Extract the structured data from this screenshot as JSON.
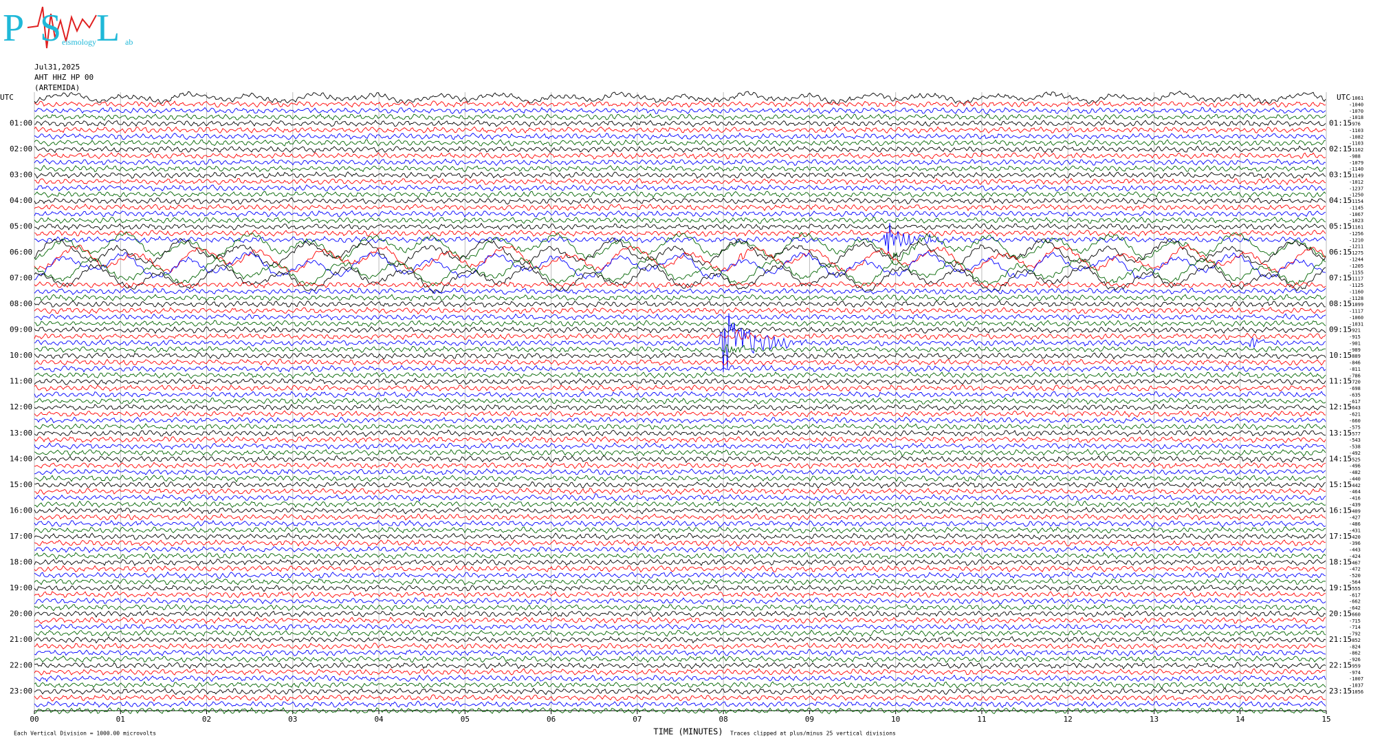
{
  "logo": {
    "initials": [
      "P",
      "S",
      "L"
    ],
    "words": [
      "eismology",
      "ab"
    ]
  },
  "chart_data": {
    "type": "helicorder",
    "date": "Jul31,2025",
    "station": "AHT HHZ HP 00",
    "site": "(ARTEMIDA)",
    "timezone_left": "UTC",
    "timezone_right": "UTC",
    "hour_labels_left": [
      "01:00",
      "02:00",
      "03:00",
      "04:00",
      "05:00",
      "06:00",
      "07:00",
      "08:00",
      "09:00",
      "10:00",
      "11:00",
      "12:00",
      "13:00",
      "14:00",
      "15:00",
      "16:00",
      "17:00",
      "18:00",
      "19:00",
      "20:00",
      "21:00",
      "22:00",
      "23:00"
    ],
    "hour_labels_right": [
      "01:15",
      "02:15",
      "03:15",
      "04:15",
      "05:15",
      "06:15",
      "07:15",
      "08:15",
      "09:15",
      "10:15",
      "11:15",
      "12:15",
      "13:15",
      "14:15",
      "15:15",
      "16:15",
      "17:15",
      "18:15",
      "19:15",
      "20:15",
      "21:15",
      "22:15",
      "23:15"
    ],
    "trace_labels": [
      -1061,
      -1040,
      -1070,
      -1018,
      -976,
      -1103,
      -1082,
      -1103,
      -1102,
      -988,
      -1079,
      -1140,
      -1149,
      -1012,
      -1237,
      -1250,
      -1154,
      -1145,
      -1067,
      -1023,
      -1161,
      -1256,
      -1210,
      -1211,
      -1275,
      -1244,
      -1205,
      -1155,
      -1117,
      -1125,
      -1160,
      -1128,
      -1099,
      -1117,
      -1060,
      -1031,
      -921,
      -915,
      -901,
      -989,
      -889,
      -846,
      -811,
      -786,
      -720,
      -698,
      -635,
      -617,
      -643,
      -621,
      -660,
      -575,
      -577,
      -543,
      -538,
      -492,
      -525,
      -496,
      -482,
      -440,
      -442,
      -464,
      -416,
      -439,
      -409,
      -427,
      -486,
      -431,
      -420,
      -396,
      -443,
      -424,
      -467,
      -472,
      -520,
      -564,
      -555,
      -617,
      -662,
      -642,
      -660,
      -715,
      -714,
      -792,
      -852,
      -824,
      -862,
      -926,
      -959,
      -974,
      -1007,
      -1037,
      -1056
    ],
    "trace_colors": [
      "#000000",
      "#ff0000",
      "#0000ff",
      "#006400"
    ],
    "xlabel": "TIME (MINUTES)",
    "xlim": [
      0,
      15
    ],
    "xticks": [
      {
        "value": 0,
        "label": "00"
      },
      {
        "value": 1,
        "label": "01"
      },
      {
        "value": 2,
        "label": "02"
      },
      {
        "value": 3,
        "label": "03"
      },
      {
        "value": 4,
        "label": "04"
      },
      {
        "value": 5,
        "label": "05"
      },
      {
        "value": 6,
        "label": "06"
      },
      {
        "value": 7,
        "label": "07"
      },
      {
        "value": 8,
        "label": "08"
      },
      {
        "value": 9,
        "label": "09"
      },
      {
        "value": 10,
        "label": "10"
      },
      {
        "value": 11,
        "label": "11"
      },
      {
        "value": 12,
        "label": "12"
      },
      {
        "value": 13,
        "label": "13"
      },
      {
        "value": 14,
        "label": "14"
      },
      {
        "value": 15,
        "label": "15"
      }
    ],
    "grid": true,
    "scale_note": "Each Vertical Division = 1000.00 microvolts",
    "clip_note": "Traces clipped at plus/minus 25 vertical divisions"
  }
}
